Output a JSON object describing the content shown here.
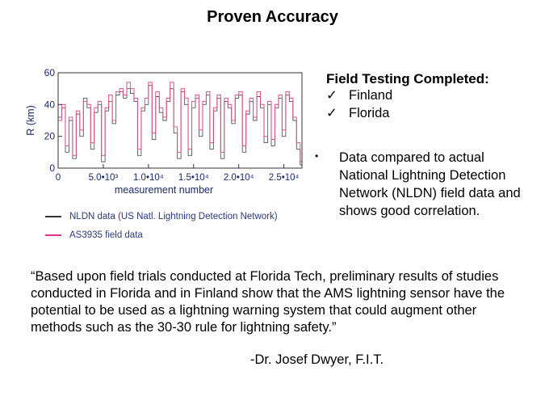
{
  "slide": {
    "title": "Proven Accuracy"
  },
  "chart_data": {
    "type": "line",
    "xlabel": "measurement number",
    "ylabel": "R (km)",
    "xlim": [
      0,
      27000
    ],
    "ylim": [
      0,
      60
    ],
    "x_ticks": [
      {
        "value": 0,
        "label": "0"
      },
      {
        "value": 5000,
        "label": "5.0•10³"
      },
      {
        "value": 10000,
        "label": "1.0•10⁴"
      },
      {
        "value": 15000,
        "label": "1.5•10⁴"
      },
      {
        "value": 20000,
        "label": "2.0•10⁴"
      },
      {
        "value": 25000,
        "label": "2.5•10⁴"
      }
    ],
    "y_ticks": [
      0,
      20,
      40,
      60
    ],
    "series": [
      {
        "name": "NLDN data (US Natl. Lightning Detection Network)",
        "color": "#444444",
        "x": [
          0,
          400,
          800,
          1200,
          1600,
          2000,
          2400,
          2800,
          3200,
          3600,
          4000,
          4400,
          4800,
          5200,
          5600,
          6000,
          6400,
          6800,
          7200,
          7600,
          8000,
          8400,
          8800,
          9200,
          9600,
          10000,
          10400,
          10800,
          11200,
          11600,
          12000,
          12400,
          12800,
          13200,
          13600,
          14000,
          14400,
          14800,
          15200,
          15600,
          16000,
          16400,
          16800,
          17200,
          17600,
          18000,
          18400,
          18800,
          19200,
          19600,
          20000,
          20400,
          20800,
          21200,
          21600,
          22000,
          22400,
          22800,
          23200,
          23600,
          24000,
          24400,
          24800,
          25200,
          25600,
          26000,
          26400,
          26800
        ],
        "y": [
          32,
          38,
          10,
          30,
          6,
          34,
          20,
          44,
          38,
          12,
          35,
          40,
          4,
          36,
          42,
          28,
          46,
          48,
          44,
          50,
          47,
          42,
          8,
          36,
          40,
          52,
          18,
          45,
          35,
          30,
          42,
          50,
          22,
          6,
          48,
          40,
          8,
          38,
          44,
          20,
          40,
          46,
          12,
          36,
          44,
          6,
          42,
          38,
          28,
          44,
          46,
          10,
          34,
          42,
          30,
          45,
          38,
          16,
          40,
          14,
          38,
          44,
          20,
          46,
          42,
          30,
          12,
          2
        ]
      },
      {
        "name": "AS3935 field data",
        "color": "#e0508a",
        "x": [
          0,
          400,
          800,
          1200,
          1600,
          2000,
          2400,
          2800,
          3200,
          3600,
          4000,
          4400,
          4800,
          5200,
          5600,
          6000,
          6400,
          6800,
          7200,
          7600,
          8000,
          8400,
          8800,
          9200,
          9600,
          10000,
          10400,
          10800,
          11200,
          11600,
          12000,
          12400,
          12800,
          13200,
          13600,
          14000,
          14400,
          14800,
          15200,
          15600,
          16000,
          16400,
          16800,
          17200,
          17600,
          18000,
          18400,
          18800,
          19200,
          19600,
          20000,
          20400,
          20800,
          21200,
          21600,
          22000,
          22400,
          22800,
          23200,
          23600,
          24000,
          24400,
          24800,
          25200,
          25600,
          26000,
          26400,
          26800
        ],
        "y": [
          30,
          40,
          14,
          32,
          8,
          36,
          24,
          42,
          40,
          16,
          38,
          42,
          8,
          38,
          46,
          30,
          48,
          50,
          46,
          54,
          50,
          44,
          12,
          38,
          44,
          54,
          22,
          48,
          38,
          32,
          44,
          54,
          26,
          10,
          50,
          44,
          12,
          42,
          46,
          24,
          42,
          48,
          16,
          38,
          46,
          10,
          44,
          40,
          30,
          46,
          48,
          14,
          36,
          44,
          32,
          48,
          40,
          20,
          42,
          18,
          40,
          46,
          24,
          48,
          44,
          32,
          16,
          4
        ]
      }
    ]
  },
  "legend": {
    "items": [
      {
        "label": "NLDN data (US Natl. Lightning Detection Network)",
        "color": "#333333"
      },
      {
        "label": "AS3935 field data",
        "color": "#e0308a"
      }
    ]
  },
  "field_testing": {
    "heading": "Field Testing Completed:",
    "check_mark": "✓",
    "items": [
      "Finland",
      "Florida"
    ]
  },
  "comparison": {
    "bullet": "•",
    "text": "Data compared to actual National Lightning Detection Network (NLDN) field data and shows good correlation."
  },
  "quote": {
    "text": "“Based upon field trials conducted at Florida Tech, preliminary results of studies conducted in Florida and in Finland show that the AMS lightning sensor have the potential to be used as a lightning warning system that could augment other methods such as the 30-30 rule for lightning safety.”",
    "attribution": "-Dr. Josef Dwyer, F.I.T."
  }
}
